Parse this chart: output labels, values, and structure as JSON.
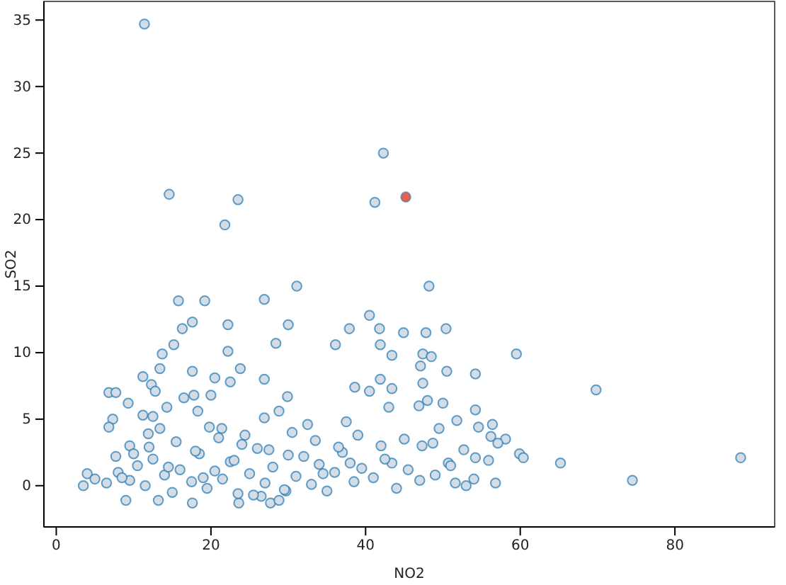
{
  "chart_data": {
    "type": "scatter",
    "xlabel": "NO2",
    "ylabel": "SO2",
    "xlim": [
      -1.6,
      92.9
    ],
    "ylim": [
      -3.1,
      36.4
    ],
    "xticks": [
      0,
      20,
      40,
      60,
      80
    ],
    "yticks": [
      0,
      5,
      10,
      15,
      20,
      25,
      30,
      35
    ],
    "grid": false,
    "marker": "circle",
    "series": [
      {
        "color": "#1f77b4",
        "x": [
          11.4,
          14.6,
          23.5,
          21.8,
          42.3,
          41.2,
          31.1,
          48.2,
          40.5,
          30.0,
          37.9,
          41.8,
          44.9,
          47.8,
          50.4,
          36.1,
          41.9,
          43.4,
          47.4,
          48.5,
          59.5,
          47.1,
          50.5,
          54.2,
          47.4,
          41.9,
          43.4,
          38.6,
          40.5,
          48.0,
          50.0,
          54.2,
          43.0,
          46.9,
          51.8,
          49.5,
          54.6,
          56.4,
          56.2,
          58.1,
          59.9,
          57.1,
          52.7,
          54.2,
          55.9,
          56.8,
          54.0,
          51.6,
          47.3,
          48.7,
          50.7,
          43.4,
          15.8,
          19.2,
          26.9,
          17.6,
          16.3,
          22.2,
          15.2,
          13.7,
          22.2,
          28.4,
          17.6,
          13.4,
          11.2,
          12.3,
          12.8,
          6.8,
          7.7,
          22.5,
          20.5,
          23.8,
          26.9,
          16.5,
          17.8,
          20.0,
          14.3,
          9.3,
          7.3,
          6.8,
          11.2,
          12.5,
          11.9,
          13.4,
          18.3,
          19.8,
          21.4,
          24.4,
          26.9,
          28.8,
          29.9,
          9.5,
          7.7,
          4.0,
          3.5,
          9.0,
          13.2,
          17.6,
          23.6,
          27.7,
          28.8,
          29.7,
          69.8,
          65.2,
          74.5,
          88.5,
          60.4,
          5.0,
          6.5,
          8.0,
          9.5,
          10.5,
          11.5,
          12.5,
          14.0,
          15.0,
          16.0,
          17.5,
          18.5,
          19.5,
          20.5,
          21.5,
          22.5,
          23.5,
          25.0,
          26.0,
          27.0,
          28.0,
          29.5,
          31.0,
          32.0,
          33.0,
          34.0,
          35.0,
          36.0,
          37.0,
          38.5,
          39.5,
          41.0,
          42.5,
          44.0,
          45.5,
          47.0,
          49.0,
          51.0,
          53.0,
          8.5,
          12.0,
          15.5,
          18.0,
          21.0,
          24.0,
          27.5,
          30.5,
          33.5,
          36.5,
          39.0,
          42.0,
          45.0,
          10.0,
          14.5,
          19.0,
          23.0,
          26.5,
          30.0,
          34.5,
          38.0,
          25.5,
          32.5,
          37.5
        ],
        "values": [
          34.7,
          21.9,
          21.5,
          19.6,
          25.0,
          21.3,
          15.0,
          15.0,
          12.8,
          12.1,
          11.8,
          11.8,
          11.5,
          11.5,
          11.8,
          10.6,
          10.6,
          9.8,
          9.9,
          9.7,
          9.9,
          9.0,
          8.6,
          8.4,
          7.7,
          8.0,
          7.3,
          7.4,
          7.1,
          6.4,
          6.2,
          5.7,
          5.9,
          6.0,
          4.9,
          4.3,
          4.4,
          4.6,
          3.7,
          3.5,
          2.4,
          3.2,
          2.7,
          2.1,
          1.9,
          0.2,
          0.5,
          0.2,
          3.0,
          3.2,
          1.7,
          1.7,
          13.9,
          13.9,
          14.0,
          12.3,
          11.8,
          12.1,
          10.6,
          9.9,
          10.1,
          10.7,
          8.6,
          8.8,
          8.2,
          7.6,
          7.1,
          7.0,
          7.0,
          7.8,
          8.1,
          8.8,
          8.0,
          6.6,
          6.8,
          6.8,
          5.9,
          6.2,
          5.0,
          4.4,
          5.3,
          5.2,
          3.9,
          4.3,
          5.6,
          4.4,
          4.3,
          3.8,
          5.1,
          5.6,
          6.7,
          3.0,
          2.2,
          0.9,
          0.0,
          -1.1,
          -1.1,
          -1.3,
          -1.3,
          -1.3,
          -1.1,
          -0.4,
          7.2,
          1.7,
          0.4,
          2.1,
          2.1,
          0.5,
          0.2,
          1.0,
          0.4,
          1.5,
          0.0,
          2.0,
          0.8,
          -0.5,
          1.2,
          0.3,
          2.4,
          -0.2,
          1.1,
          0.5,
          1.8,
          -0.6,
          0.9,
          2.8,
          0.2,
          1.4,
          -0.3,
          0.7,
          2.2,
          0.1,
          1.6,
          -0.4,
          1.0,
          2.5,
          0.3,
          1.3,
          0.6,
          2.0,
          -0.2,
          1.2,
          0.4,
          0.8,
          1.5,
          0.0,
          0.6,
          2.9,
          3.3,
          2.6,
          3.6,
          3.1,
          2.7,
          4.0,
          3.4,
          2.9,
          3.8,
          3.0,
          3.5,
          2.4,
          1.4,
          0.6,
          1.9,
          -0.8,
          2.3,
          0.9,
          1.7,
          -0.7,
          4.6,
          4.8
        ]
      },
      {
        "color": "#e8604c",
        "x": [
          45.2
        ],
        "values": [
          21.7
        ]
      }
    ]
  }
}
